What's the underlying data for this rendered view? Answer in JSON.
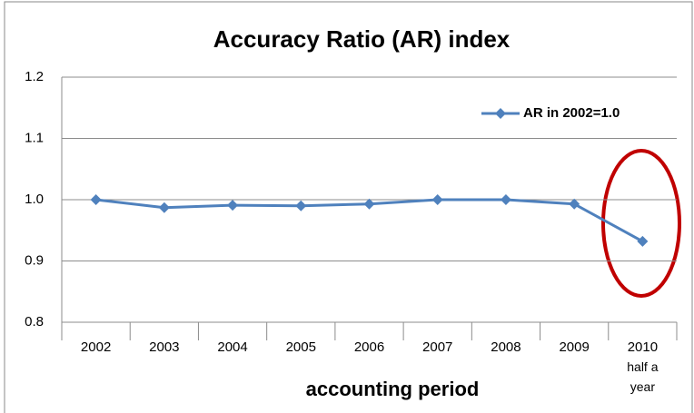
{
  "chart_data": {
    "type": "line",
    "title": "Accuracy Ratio (AR) index",
    "x_label": "accounting period",
    "categories": [
      "2002",
      "2003",
      "2004",
      "2005",
      "2006",
      "2007",
      "2008",
      "2009",
      "2010\nhalf a\nyear"
    ],
    "series": [
      {
        "name": "AR in 2002=1.0",
        "color": "#4f81bd",
        "values": [
          1.0,
          0.987,
          0.991,
          0.99,
          0.993,
          1.0,
          1.0,
          0.993,
          0.932
        ]
      }
    ],
    "ylim": [
      0.8,
      1.2
    ],
    "yticks": [
      0.8,
      0.9,
      {
        "value": 1,
        "label": "1.0"
      },
      1.1,
      1.2
    ],
    "grid": true,
    "legend": "top-right"
  }
}
